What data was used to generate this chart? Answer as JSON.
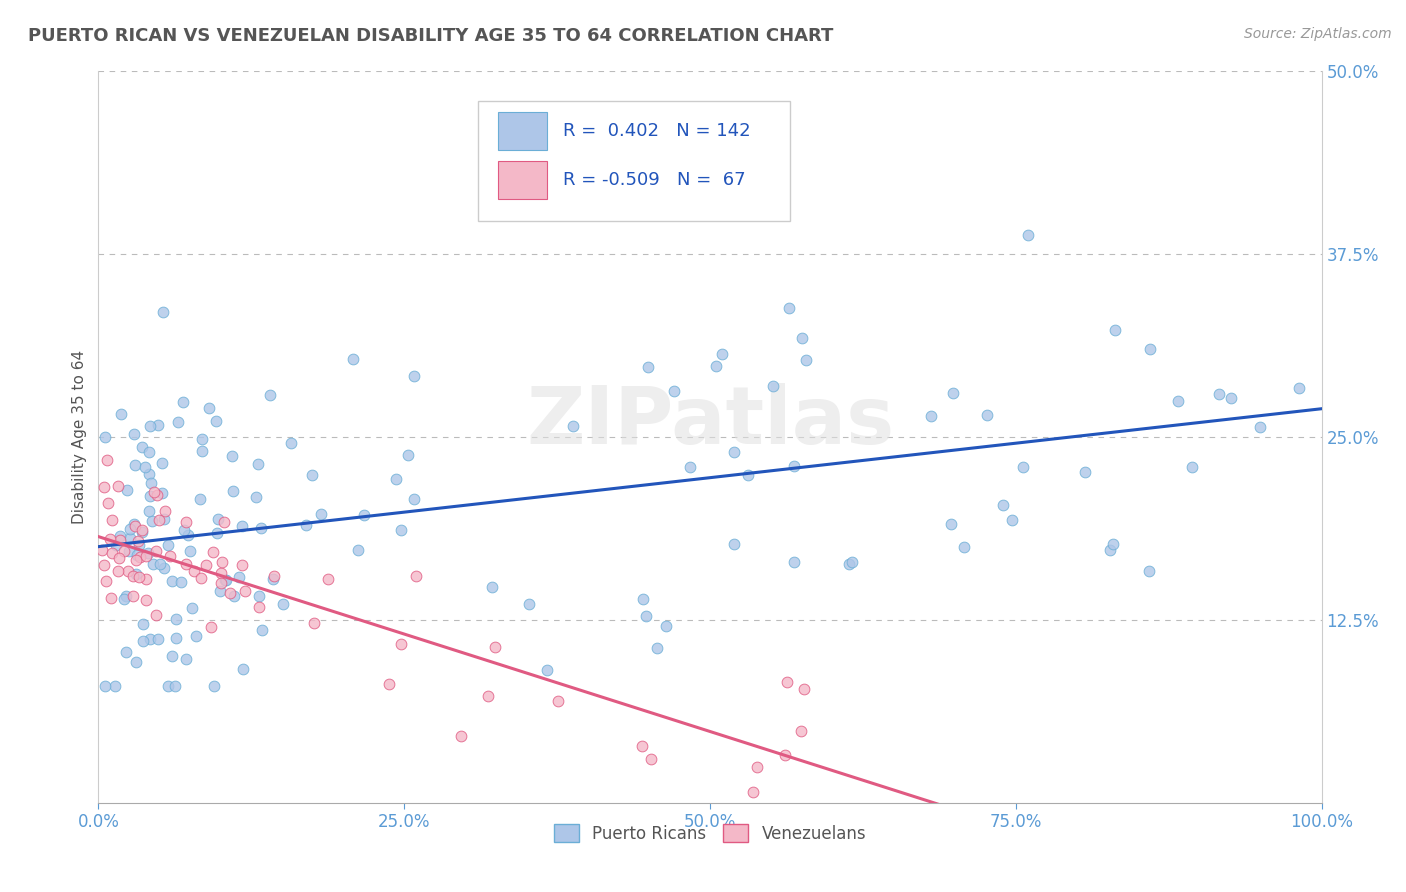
{
  "title": "PUERTO RICAN VS VENEZUELAN DISABILITY AGE 35 TO 64 CORRELATION CHART",
  "source": "Source: ZipAtlas.com",
  "ylabel": "Disability Age 35 to 64",
  "xlim": [
    0,
    1.0
  ],
  "ylim": [
    0,
    0.5
  ],
  "xticks": [
    0.0,
    0.25,
    0.5,
    0.75,
    1.0
  ],
  "yticks": [
    0.0,
    0.125,
    0.25,
    0.375,
    0.5
  ],
  "blue_r": 0.402,
  "blue_n": 142,
  "pink_r": -0.509,
  "pink_n": 67,
  "blue_color": "#aec6e8",
  "blue_edge": "#6baed6",
  "pink_color": "#f4b8c8",
  "pink_edge": "#e05a82",
  "blue_line_color": "#2255bb",
  "pink_line_color": "#e05a82",
  "background_color": "#ffffff",
  "grid_color": "#bbbbbb",
  "title_color": "#555555",
  "axis_color": "#5b9bd5",
  "watermark": "ZIPatlas",
  "legend_text_color": "#2255bb"
}
